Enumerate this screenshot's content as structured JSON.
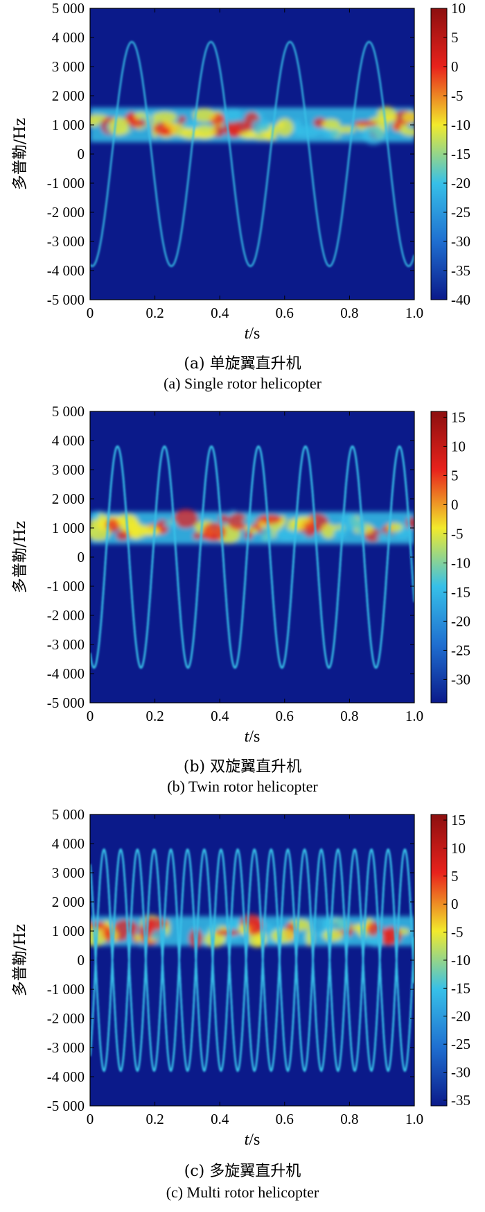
{
  "chart_data": [
    {
      "type": "heatmap",
      "title": "",
      "caption_cn": "(a) 单旋翼直升机",
      "caption_en": "(a) Single rotor helicopter",
      "xlabel_var": "t",
      "xlabel_unit": "/s",
      "ylabel": "多普勒/Hz",
      "x_ticks": [
        "0",
        "0.2",
        "0.4",
        "0.6",
        "0.8",
        "1.0"
      ],
      "y_ticks": [
        "5 000",
        "4 000",
        "3 000",
        "2 000",
        "1 000",
        "0",
        "-1 000",
        "-2 000",
        "-3 000",
        "-4 000",
        "-5 000"
      ],
      "xlim": [
        0,
        1.0
      ],
      "ylim": [
        -5000,
        5000
      ],
      "colorbar_ticks": [
        "10",
        "5",
        "0",
        "-5",
        "-10",
        "-15",
        "-20",
        "-25",
        "-30",
        "-35",
        "-40"
      ],
      "colorbar_range": [
        -40,
        10
      ],
      "colors": [
        "#0b1a8a",
        "#1f6fd0",
        "#37c0e8",
        "#f2ea2c",
        "#e8221c",
        "#8c0f0f"
      ],
      "rotor_traces": {
        "blades": 1,
        "frequency_hz": 4.1,
        "amplitude_hz": 3850,
        "phase_deg": -100
      },
      "body_echo": {
        "center_hz": 1000,
        "spread_hz": 700
      }
    },
    {
      "type": "heatmap",
      "title": "",
      "caption_cn": "(b) 双旋翼直升机",
      "caption_en": "(b) Twin rotor helicopter",
      "xlabel_var": "t",
      "xlabel_unit": "/s",
      "ylabel": "多普勒/Hz",
      "x_ticks": [
        "0",
        "0.2",
        "0.4",
        "0.6",
        "0.8",
        "1.0"
      ],
      "y_ticks": [
        "5 000",
        "4 000",
        "3 000",
        "2 000",
        "1 000",
        "0",
        "-1 000",
        "-2 000",
        "-3 000",
        "-4 000",
        "-5 000"
      ],
      "xlim": [
        0,
        1.0
      ],
      "ylim": [
        -5000,
        5000
      ],
      "colorbar_ticks": [
        "15",
        "10",
        "5",
        "0",
        "-5",
        "-10",
        "-15",
        "-20",
        "-25",
        "-30"
      ],
      "colorbar_range": [
        -34,
        16
      ],
      "colors": [
        "#0b1a8a",
        "#1f6fd0",
        "#37c0e8",
        "#f2ea2c",
        "#e8221c",
        "#8c0f0f"
      ],
      "rotor_traces": {
        "blades": 2,
        "frequency_hz": 6.9,
        "amplitude_hz": 3800,
        "phase_deg": -120
      },
      "body_echo": {
        "center_hz": 1000,
        "spread_hz": 650
      }
    },
    {
      "type": "heatmap",
      "title": "",
      "caption_cn": "(c) 多旋翼直升机",
      "caption_en": "(c) Multi rotor helicopter",
      "xlabel_var": "t",
      "xlabel_unit": "/s",
      "ylabel": "多普勒/Hz",
      "x_ticks": [
        "0",
        "0.2",
        "0.4",
        "0.6",
        "0.8",
        "1.0"
      ],
      "y_ticks": [
        "5 000",
        "4 000",
        "3 000",
        "2 000",
        "1 000",
        "0",
        "-1 000",
        "-2 000",
        "-3 000",
        "-4 000",
        "-5 000"
      ],
      "xlim": [
        0,
        1.0
      ],
      "ylim": [
        -5000,
        5000
      ],
      "colorbar_ticks": [
        "15",
        "10",
        "5",
        "0",
        "-5",
        "-10",
        "-15",
        "-20",
        "-25",
        "-30",
        "-35"
      ],
      "colorbar_range": [
        -36,
        16
      ],
      "colors": [
        "#0b1a8a",
        "#1f6fd0",
        "#37c0e8",
        "#f2ea2c",
        "#e8221c",
        "#8c0f0f"
      ],
      "rotor_traces": {
        "blades": 4,
        "frequency_hz": 9.7,
        "amplitude_hz": 3800,
        "phase_deg": -60
      },
      "body_echo": {
        "center_hz": 1000,
        "spread_hz": 600
      }
    }
  ]
}
